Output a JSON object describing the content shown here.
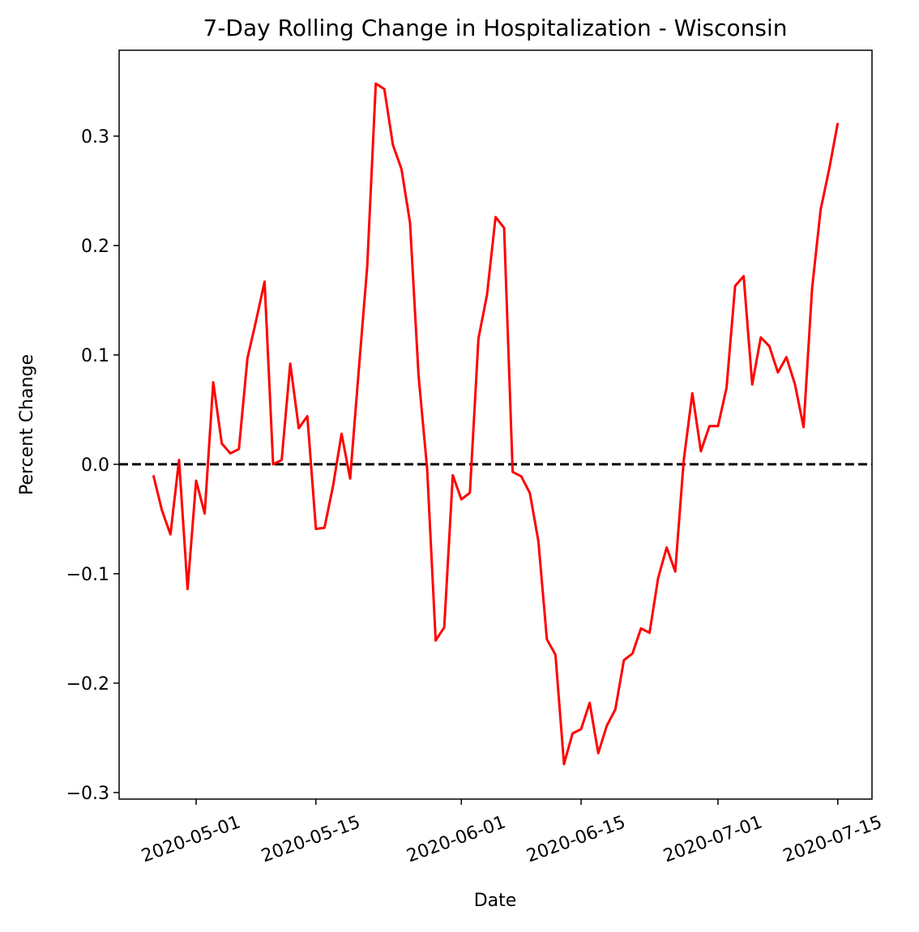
{
  "chart_data": {
    "type": "line",
    "title": "7-Day Rolling Change in Hospitalization - Wisconsin",
    "xlabel": "Date",
    "ylabel": "Percent Change",
    "x": [
      "2020-04-26",
      "2020-04-27",
      "2020-04-28",
      "2020-04-29",
      "2020-04-30",
      "2020-05-01",
      "2020-05-02",
      "2020-05-03",
      "2020-05-04",
      "2020-05-05",
      "2020-05-06",
      "2020-05-07",
      "2020-05-08",
      "2020-05-09",
      "2020-05-10",
      "2020-05-11",
      "2020-05-12",
      "2020-05-13",
      "2020-05-14",
      "2020-05-15",
      "2020-05-16",
      "2020-05-17",
      "2020-05-18",
      "2020-05-19",
      "2020-05-20",
      "2020-05-21",
      "2020-05-22",
      "2020-05-23",
      "2020-05-24",
      "2020-05-25",
      "2020-05-26",
      "2020-05-27",
      "2020-05-28",
      "2020-05-29",
      "2020-05-30",
      "2020-05-31",
      "2020-06-01",
      "2020-06-02",
      "2020-06-03",
      "2020-06-04",
      "2020-06-05",
      "2020-06-06",
      "2020-06-07",
      "2020-06-08",
      "2020-06-09",
      "2020-06-10",
      "2020-06-11",
      "2020-06-12",
      "2020-06-13",
      "2020-06-14",
      "2020-06-15",
      "2020-06-16",
      "2020-06-17",
      "2020-06-18",
      "2020-06-19",
      "2020-06-20",
      "2020-06-21",
      "2020-06-22",
      "2020-06-23",
      "2020-06-24",
      "2020-06-25",
      "2020-06-26",
      "2020-06-27",
      "2020-06-28",
      "2020-06-29",
      "2020-06-30",
      "2020-07-01",
      "2020-07-02",
      "2020-07-03",
      "2020-07-04",
      "2020-07-05",
      "2020-07-06",
      "2020-07-07",
      "2020-07-08",
      "2020-07-09",
      "2020-07-10",
      "2020-07-11",
      "2020-07-12",
      "2020-07-13",
      "2020-07-14",
      "2020-07-15"
    ],
    "series": [
      {
        "color": "#ff0000",
        "values": [
          -0.01,
          -0.042,
          -0.064,
          0.004,
          -0.114,
          -0.015,
          -0.045,
          0.075,
          0.019,
          0.01,
          0.014,
          0.097,
          0.131,
          0.167,
          0.0,
          0.004,
          0.092,
          0.033,
          0.044,
          -0.059,
          -0.058,
          -0.02,
          0.028,
          -0.013,
          0.085,
          0.181,
          0.348,
          0.343,
          0.292,
          0.27,
          0.221,
          0.081,
          -0.004,
          -0.161,
          -0.149,
          -0.01,
          -0.032,
          -0.026,
          0.115,
          0.155,
          0.226,
          0.216,
          -0.007,
          -0.011,
          -0.026,
          -0.07,
          -0.16,
          -0.174,
          -0.274,
          -0.246,
          -0.242,
          -0.218,
          -0.264,
          -0.239,
          -0.224,
          -0.179,
          -0.173,
          -0.15,
          -0.154,
          -0.104,
          -0.076,
          -0.098,
          0.004,
          0.065,
          0.012,
          0.035,
          0.035,
          0.07,
          0.163,
          0.172,
          0.073,
          0.116,
          0.108,
          0.084,
          0.098,
          0.073,
          0.034,
          0.161,
          0.233,
          0.27,
          0.312
        ]
      }
    ],
    "xlim": [
      "2020-04-22",
      "2020-07-19"
    ],
    "xticks": [
      "2020-05-01",
      "2020-05-15",
      "2020-06-01",
      "2020-06-15",
      "2020-07-01",
      "2020-07-15"
    ],
    "ylim": [
      -0.306,
      0.3785
    ],
    "yticks": [
      {
        "value": -0.3,
        "label": "−0.3"
      },
      {
        "value": -0.2,
        "label": "−0.2"
      },
      {
        "value": -0.1,
        "label": "−0.1"
      },
      {
        "value": 0,
        "label": "0.0"
      },
      0.1,
      0.2,
      0.3
    ],
    "hline": 0,
    "hline_color": "#000000"
  }
}
